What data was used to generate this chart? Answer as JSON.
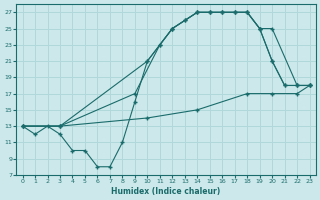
{
  "xlabel": "Humidex (Indice chaleur)",
  "bg_color": "#cce8ea",
  "grid_color": "#b0d8da",
  "line_color": "#1a6b6b",
  "xlim": [
    -0.5,
    23.5
  ],
  "ylim": [
    7,
    28
  ],
  "yticks": [
    7,
    9,
    11,
    13,
    15,
    17,
    19,
    21,
    23,
    25,
    27
  ],
  "xticks": [
    0,
    1,
    2,
    3,
    4,
    5,
    6,
    7,
    8,
    9,
    10,
    11,
    12,
    13,
    14,
    15,
    16,
    17,
    18,
    19,
    20,
    21,
    22,
    23
  ],
  "series1_x": [
    0,
    1,
    2,
    3,
    4,
    5,
    6,
    7,
    8,
    9,
    10,
    11,
    12,
    13,
    14,
    15,
    16,
    17,
    18,
    19,
    20,
    21,
    22,
    23
  ],
  "series1_y": [
    13,
    12,
    13,
    12,
    10,
    10,
    8,
    8,
    11,
    16,
    21,
    23,
    25,
    26,
    27,
    27,
    27,
    27,
    27,
    25,
    21,
    18,
    18,
    18
  ],
  "series2_x": [
    0,
    3,
    9,
    11,
    12,
    13,
    14,
    15,
    16,
    17,
    18,
    19,
    20,
    21,
    22,
    23
  ],
  "series2_y": [
    13,
    13,
    17,
    23,
    25,
    26,
    27,
    27,
    27,
    27,
    27,
    25,
    21,
    18,
    18,
    18
  ],
  "series3_x": [
    0,
    3,
    10,
    12,
    14,
    15,
    16,
    17,
    18,
    19,
    20,
    22,
    23
  ],
  "series3_y": [
    13,
    13,
    21,
    25,
    27,
    27,
    27,
    27,
    27,
    25,
    25,
    18,
    18
  ],
  "series4_x": [
    0,
    3,
    10,
    14,
    18,
    20,
    22,
    23
  ],
  "series4_y": [
    13,
    13,
    14,
    15,
    17,
    17,
    17,
    18
  ]
}
